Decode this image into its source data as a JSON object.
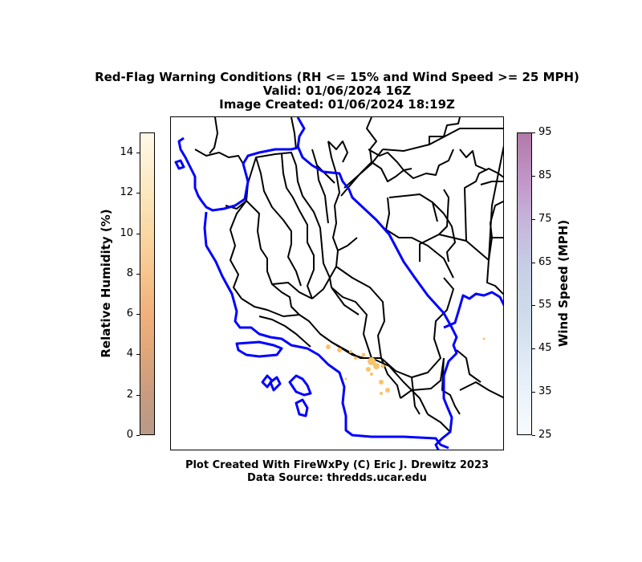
{
  "title": {
    "line1": "Red-Flag Warning Conditions (RH <= 15% and Wind Speed >= 25 MPH)",
    "line2": "Valid: 01/06/2024 16Z",
    "line3": "Image Created: 01/06/2024 18:19Z"
  },
  "colorbar_rh": {
    "label": "Relative Humidity (%)",
    "ticks": [
      "0",
      "2",
      "4",
      "6",
      "8",
      "10",
      "12",
      "14"
    ],
    "range": [
      0,
      15
    ]
  },
  "colorbar_ws": {
    "label": "Wind Speed (MPH)",
    "ticks": [
      "25",
      "35",
      "45",
      "55",
      "65",
      "75",
      "85",
      "95"
    ],
    "range": [
      25,
      95
    ]
  },
  "footer": {
    "line1": "Plot Created With FireWxPy (C) Eric J. Drewitz 2023",
    "line2": "Data Source: thredds.ucar.edu"
  },
  "colors": {
    "coastline": "#0000ff",
    "boundaries": "#000000",
    "low_rh_shading": "#f7c46a"
  }
}
